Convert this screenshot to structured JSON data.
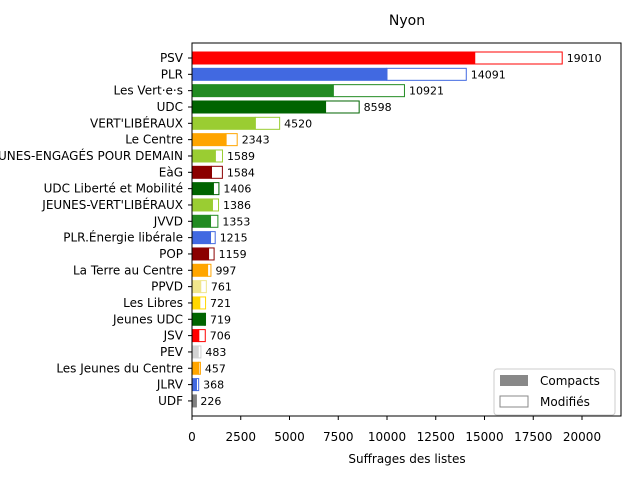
{
  "chart_data": {
    "type": "bar",
    "orientation": "horizontal",
    "stacked": true,
    "title": "Nyon",
    "xlabel": "Suffrages des listes",
    "ylabel": "",
    "xlim": [
      0,
      22000
    ],
    "xticks": [
      0,
      2500,
      5000,
      7500,
      10000,
      12500,
      15000,
      17500,
      20000
    ],
    "grid": false,
    "legend_position": "bottom-right",
    "legend": [
      {
        "name": "Compacts",
        "style": "filled",
        "color": "#888888"
      },
      {
        "name": "Modifiés",
        "style": "outline",
        "color": "#888888"
      }
    ],
    "categories": [
      "PSV",
      "PLR",
      "Les Vert·e·s",
      "UDC",
      "VERT'LIBÉRAUX",
      "Le Centre",
      "JEUNES-ENGAGÉS POUR DEMAIN",
      "EàG",
      "UDC Liberté et Mobilité",
      "JEUNES-VERT'LIBÉRAUX",
      "JVVD",
      "PLR.Énergie libérale",
      "POP",
      "La Terre au Centre",
      "PPVD",
      "Les Libres",
      "Jeunes UDC",
      "JSV",
      "PEV",
      "Les Jeunes du Centre",
      "JLRV",
      "UDF"
    ],
    "totals": [
      19010,
      14091,
      10921,
      8598,
      4520,
      2343,
      1589,
      1584,
      1406,
      1386,
      1353,
      1215,
      1159,
      997,
      761,
      721,
      719,
      706,
      483,
      457,
      368,
      226
    ],
    "compacts": [
      14500,
      10000,
      7250,
      6850,
      3250,
      1750,
      1200,
      1000,
      1100,
      1050,
      950,
      950,
      850,
      800,
      450,
      400,
      650,
      350,
      320,
      350,
      230,
      200
    ],
    "colors": [
      "#ff0000",
      "#4169e1",
      "#228b22",
      "#006400",
      "#9acd32",
      "#ffa500",
      "#9acd32",
      "#8b0000",
      "#006400",
      "#9acd32",
      "#228b22",
      "#4169e1",
      "#8b0000",
      "#ffa500",
      "#f0e68c",
      "#ffd700",
      "#006400",
      "#ff0000",
      "#d3d3d3",
      "#ffa500",
      "#4169e1",
      "#808080"
    ]
  }
}
